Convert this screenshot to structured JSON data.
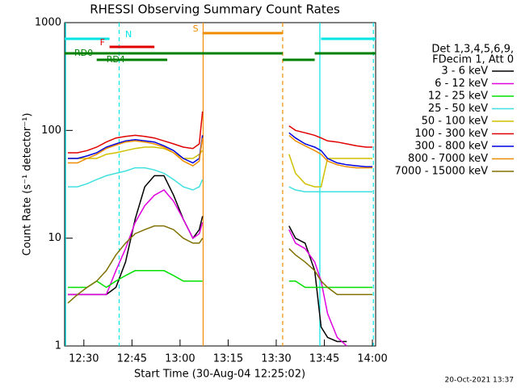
{
  "chart_data": {
    "type": "line",
    "title": "RHESSI Observing Summary Count Rates",
    "xlabel": "Start Time (30-Aug-04 12:25:02)",
    "ylabel": "Count Rate (s⁻¹ detector⁻¹)",
    "legend_header": [
      "Det 1,3,4,5,6,9,",
      "FDecim 1, Att 0"
    ],
    "footer": "20-Oct-2021 13:37",
    "log_y": true,
    "xlim": [
      744,
      841
    ],
    "ylim": [
      1,
      1000
    ],
    "yticks": [
      1,
      10,
      100,
      1000
    ],
    "xticks": [
      {
        "value": 750,
        "label": "12:30"
      },
      {
        "value": 765,
        "label": "12:45"
      },
      {
        "value": 780,
        "label": "13:00"
      },
      {
        "value": 795,
        "label": "13:15"
      },
      {
        "value": 810,
        "label": "13:30"
      },
      {
        "value": 825,
        "label": "13:45"
      },
      {
        "value": 840,
        "label": "14:00"
      }
    ],
    "x": [
      745,
      748,
      751,
      754,
      757,
      760,
      763,
      766,
      769,
      772,
      775,
      778,
      781,
      784,
      786,
      787,
      800,
      814,
      816,
      819,
      822,
      824,
      826,
      829,
      832,
      835,
      838,
      840
    ],
    "series": [
      {
        "name": "3 - 6 keV",
        "color": "#000000",
        "values": [
          3,
          3,
          3,
          3,
          3,
          3.5,
          6,
          15,
          30,
          38,
          38,
          25,
          15,
          10,
          12,
          16,
          null,
          13,
          10,
          9,
          5,
          1.5,
          1.2,
          1.1,
          1.1,
          null,
          null,
          null
        ]
      },
      {
        "name": "6 - 12 keV",
        "color": "#e000e0",
        "values": [
          3,
          3,
          3,
          3,
          3,
          5,
          8,
          14,
          20,
          25,
          28,
          22,
          15,
          10,
          11,
          14,
          null,
          12,
          9,
          8,
          6,
          4,
          2,
          1.2,
          1,
          null,
          null,
          null
        ]
      },
      {
        "name": "12 - 25 keV",
        "color": "#00e000",
        "values": [
          3.5,
          3.5,
          3.5,
          4,
          3.5,
          4,
          4.5,
          5,
          5,
          5,
          5,
          4.5,
          4,
          4,
          4,
          4,
          null,
          4,
          4,
          3.5,
          3.5,
          3.5,
          3.5,
          3.5,
          3.5,
          3.5,
          3.5,
          3.5
        ]
      },
      {
        "name": "25 - 50 keV",
        "color": "#40e0e0",
        "values": [
          30,
          30,
          32,
          35,
          38,
          40,
          42,
          45,
          45,
          43,
          40,
          35,
          30,
          28,
          30,
          35,
          null,
          30,
          28,
          27,
          27,
          27,
          27,
          27,
          27,
          27,
          27,
          27
        ]
      },
      {
        "name": "50 - 100 keV",
        "color": "#d0c000",
        "values": [
          55,
          55,
          55,
          55,
          60,
          62,
          65,
          68,
          70,
          70,
          68,
          62,
          55,
          55,
          60,
          65,
          null,
          60,
          40,
          32,
          30,
          30,
          55,
          55,
          55,
          55,
          55,
          55
        ]
      },
      {
        "name": "100 - 300 keV",
        "color": "#e00000",
        "values": [
          62,
          62,
          65,
          70,
          78,
          85,
          88,
          90,
          88,
          85,
          80,
          75,
          70,
          68,
          75,
          150,
          null,
          110,
          100,
          95,
          90,
          85,
          80,
          78,
          75,
          72,
          70,
          70
        ]
      },
      {
        "name": "300 - 800 keV",
        "color": "#0000e0",
        "values": [
          55,
          55,
          58,
          62,
          70,
          75,
          80,
          82,
          80,
          78,
          72,
          65,
          55,
          50,
          55,
          90,
          null,
          95,
          85,
          75,
          70,
          65,
          55,
          50,
          48,
          47,
          46,
          46
        ]
      },
      {
        "name": "800 - 7000 keV",
        "color": "#f08c00",
        "values": [
          50,
          50,
          55,
          60,
          68,
          73,
          78,
          80,
          78,
          75,
          70,
          62,
          52,
          47,
          52,
          85,
          null,
          90,
          80,
          72,
          65,
          60,
          52,
          48,
          46,
          45,
          45,
          45
        ]
      },
      {
        "name": "7000 - 15000 keV",
        "color": "#807000",
        "values": [
          2.5,
          3,
          3.5,
          4,
          5,
          7,
          9,
          11,
          12,
          13,
          13,
          12,
          10,
          9,
          9,
          10,
          null,
          8,
          7,
          6,
          5,
          4,
          3.5,
          3,
          3,
          3,
          3,
          3
        ]
      }
    ],
    "vlines": [
      {
        "x": 744.3,
        "color": "#00e5e5",
        "style": "solid"
      },
      {
        "x": 761,
        "color": "#00e5e5",
        "style": "dashed"
      },
      {
        "x": 787.2,
        "color": "#f08c00",
        "style": "solid"
      },
      {
        "x": 812,
        "color": "#f08c00",
        "style": "dashed"
      },
      {
        "x": 823.6,
        "color": "#00e5e5",
        "style": "solid"
      },
      {
        "x": 840.3,
        "color": "#00e5e5",
        "style": "dashed"
      }
    ],
    "flags": [
      {
        "label": "N",
        "color": "#00e5e5",
        "segments": [
          [
            744,
            758
          ],
          [
            824,
            841
          ]
        ]
      },
      {
        "label": "F",
        "color": "#e00000",
        "segments": [
          [
            758,
            772
          ]
        ]
      },
      {
        "label": "S",
        "color": "#f08c00",
        "segments": [
          [
            787,
            812
          ]
        ]
      },
      {
        "label": "RD0",
        "color": "#008000",
        "segments": [
          [
            744,
            812
          ],
          [
            822,
            841
          ]
        ]
      },
      {
        "label": "RD4",
        "color": "#008000",
        "segments": [
          [
            754,
            776
          ],
          [
            812,
            822
          ]
        ]
      }
    ]
  }
}
